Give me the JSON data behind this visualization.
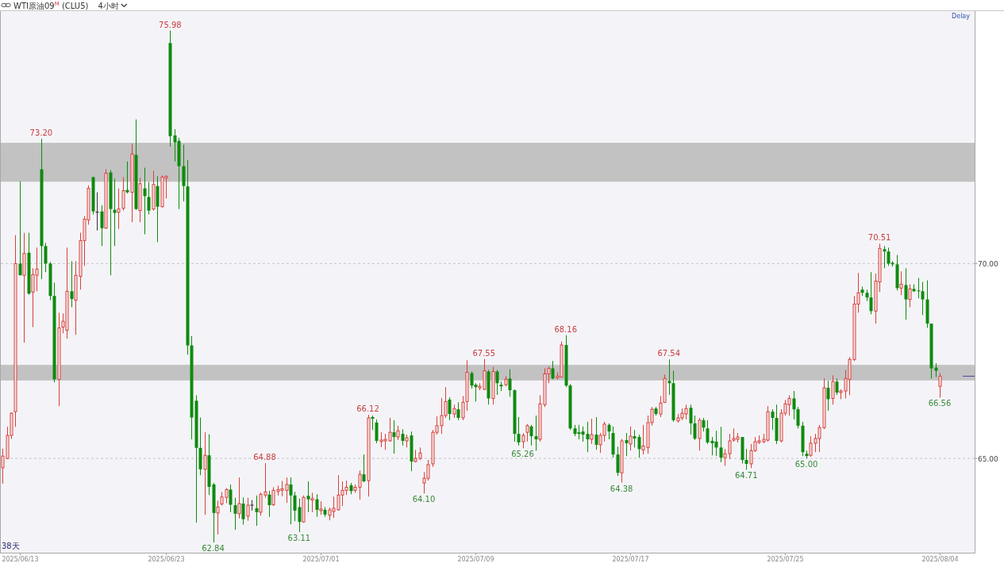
{
  "chart_data": {
    "type": "candlestick",
    "title": "WTI原油09$^{M}$ (CLU5)",
    "subtitle": "4小时",
    "categories": [
      null,
      null,
      null,
      null,
      "2025/06/13",
      null,
      null,
      null,
      null,
      null,
      null,
      null,
      null,
      null,
      null,
      null,
      null,
      null,
      null,
      null,
      null,
      null,
      null,
      null,
      null,
      null,
      null,
      null,
      null,
      null,
      null,
      null,
      null,
      null,
      null,
      null,
      null,
      null,
      "2025/06/23",
      null,
      null,
      null,
      null,
      null,
      null,
      null,
      null,
      null,
      null,
      null,
      null,
      null,
      null,
      null,
      null,
      null,
      null,
      null,
      null,
      null,
      null,
      null,
      null,
      null,
      null,
      null,
      null,
      null,
      null,
      null,
      null,
      null,
      null,
      null,
      "2025/07/01",
      null,
      null,
      null,
      null,
      null,
      null,
      null,
      null,
      null,
      null,
      null,
      null,
      null,
      null,
      null,
      null,
      null,
      null,
      null,
      null,
      null,
      null,
      null,
      null,
      null,
      null,
      null,
      null,
      null,
      null,
      null,
      null,
      null,
      null,
      null,
      "2025/07/09",
      null,
      null,
      null,
      null,
      null,
      null,
      null,
      null,
      null,
      null,
      null,
      null,
      null,
      null,
      null,
      null,
      null,
      null,
      null,
      null,
      null,
      null,
      null,
      null,
      null,
      null,
      null,
      null,
      null,
      null,
      null,
      null,
      null,
      null,
      null,
      "2025/07/17",
      null,
      null,
      null,
      null,
      null,
      null,
      null,
      null,
      null,
      null,
      null,
      null,
      null,
      null,
      null,
      null,
      null,
      null,
      null,
      null,
      null,
      null,
      null,
      null,
      null,
      null,
      null,
      null,
      null,
      null,
      null,
      null,
      null,
      null,
      null,
      "2025/07/25",
      null,
      null,
      null,
      null,
      null,
      null,
      null,
      null,
      null,
      null,
      null,
      null,
      null,
      null,
      null,
      null,
      null,
      null,
      null,
      null,
      null,
      null,
      null,
      null,
      null,
      null,
      null,
      null,
      null,
      null,
      null,
      null,
      null,
      null,
      null,
      "2025/08/04"
    ],
    "ohlc": [
      [
        64.76,
        65.25,
        64.35,
        65.06
      ],
      [
        65.0,
        65.81,
        64.98,
        65.59
      ],
      [
        65.59,
        66.18,
        65.5,
        66.16
      ],
      [
        66.2,
        70.73,
        65.81,
        70.0
      ],
      [
        70.0,
        72.11,
        69.7,
        69.7
      ],
      [
        69.7,
        70.79,
        67.97,
        70.26
      ],
      [
        70.28,
        70.79,
        69.2,
        69.23
      ],
      [
        69.27,
        69.88,
        68.37,
        69.72
      ],
      [
        69.7,
        70.41,
        69.29,
        69.86
      ],
      [
        72.42,
        73.2,
        69.6,
        70.45
      ],
      [
        70.45,
        70.53,
        69.78,
        70.0
      ],
      [
        70.0,
        70.04,
        69.06,
        69.17
      ],
      [
        69.17,
        69.51,
        66.95,
        67.03
      ],
      [
        67.03,
        68.74,
        66.34,
        68.35
      ],
      [
        68.37,
        68.72,
        68.21,
        68.52
      ],
      [
        68.29,
        70.41,
        68.07,
        69.29
      ],
      [
        69.29,
        70.06,
        68.88,
        69.09
      ],
      [
        69.06,
        70.06,
        68.17,
        69.7
      ],
      [
        69.67,
        70.79,
        69.33,
        70.59
      ],
      [
        70.59,
        71.22,
        69.94,
        71.14
      ],
      [
        71.12,
        72.01,
        71.0,
        71.93
      ],
      [
        72.22,
        72.22,
        71.26,
        71.34
      ],
      [
        71.32,
        71.83,
        70.85,
        71.32
      ],
      [
        71.34,
        71.5,
        70.45,
        70.91
      ],
      [
        70.91,
        72.42,
        70.89,
        72.32
      ],
      [
        72.34,
        72.4,
        69.7,
        71.4
      ],
      [
        71.38,
        72.18,
        70.45,
        71.3
      ],
      [
        71.32,
        71.93,
        70.89,
        71.4
      ],
      [
        71.42,
        72.22,
        71.36,
        71.87
      ],
      [
        71.89,
        72.62,
        71.8,
        71.83
      ],
      [
        71.83,
        73.07,
        71.06,
        72.81
      ],
      [
        72.79,
        73.7,
        71.38,
        71.4
      ],
      [
        71.36,
        72.2,
        71.06,
        72.05
      ],
      [
        71.93,
        72.46,
        70.75,
        71.73
      ],
      [
        71.71,
        72.09,
        71.26,
        71.36
      ],
      [
        71.4,
        72.38,
        71.36,
        72.03
      ],
      [
        71.99,
        72.24,
        70.55,
        71.46
      ],
      [
        71.46,
        72.26,
        71.44,
        72.22
      ],
      [
        72.2,
        72.26,
        71.67,
        72.24
      ],
      [
        75.66,
        75.98,
        73.0,
        73.27
      ],
      [
        73.29,
        73.45,
        72.62,
        73.11
      ],
      [
        73.15,
        73.23,
        71.4,
        72.5
      ],
      [
        72.5,
        73.05,
        71.6,
        71.99
      ],
      [
        71.98,
        72.66,
        67.66,
        67.9
      ],
      [
        67.9,
        68.14,
        65.49,
        66.05
      ],
      [
        66.48,
        66.62,
        63.35,
        65.27
      ],
      [
        65.27,
        66.05,
        64.57,
        64.72
      ],
      [
        64.72,
        65.67,
        63.55,
        65.08
      ],
      [
        65.08,
        65.62,
        64.06,
        64.27
      ],
      [
        64.33,
        64.37,
        62.84,
        63.6
      ],
      [
        63.6,
        63.92,
        63.05,
        63.75
      ],
      [
        63.83,
        64.14,
        63.79,
        64.01
      ],
      [
        64.0,
        64.24,
        63.85,
        64.2
      ],
      [
        64.2,
        64.33,
        63.62,
        63.81
      ],
      [
        63.8,
        63.99,
        63.17,
        63.58
      ],
      [
        63.58,
        64.51,
        63.46,
        63.84
      ],
      [
        63.84,
        64.0,
        63.3,
        63.44
      ],
      [
        63.52,
        63.99,
        63.4,
        63.8
      ],
      [
        63.8,
        63.93,
        63.66,
        63.8
      ],
      [
        63.72,
        64.05,
        63.27,
        63.62
      ],
      [
        63.62,
        64.12,
        63.53,
        64.08
      ],
      [
        64.06,
        64.88,
        63.99,
        64.14
      ],
      [
        64.07,
        64.17,
        63.5,
        63.8
      ],
      [
        63.81,
        64.26,
        63.78,
        64.18
      ],
      [
        64.15,
        64.3,
        64.05,
        64.2
      ],
      [
        64.18,
        64.42,
        64.03,
        64.22
      ],
      [
        64.18,
        64.51,
        63.86,
        64.33
      ],
      [
        64.33,
        64.51,
        63.31,
        64.05
      ],
      [
        64.05,
        64.14,
        63.39,
        63.66
      ],
      [
        63.75,
        63.97,
        63.11,
        63.37
      ],
      [
        63.37,
        64.05,
        63.35,
        64.0
      ],
      [
        64.04,
        64.41,
        63.62,
        63.95
      ],
      [
        63.93,
        64.12,
        63.62,
        63.97
      ],
      [
        63.95,
        64.08,
        63.5,
        63.68
      ],
      [
        63.66,
        63.9,
        63.55,
        63.7
      ],
      [
        63.68,
        63.75,
        63.5,
        63.56
      ],
      [
        63.54,
        63.74,
        63.41,
        63.68
      ],
      [
        63.64,
        64.02,
        63.47,
        63.72
      ],
      [
        63.68,
        64.57,
        63.66,
        64.06
      ],
      [
        64.06,
        64.41,
        63.78,
        64.18
      ],
      [
        64.18,
        64.43,
        64.06,
        64.26
      ],
      [
        64.31,
        64.37,
        64.08,
        64.16
      ],
      [
        64.18,
        64.33,
        64.12,
        64.26
      ],
      [
        64.26,
        64.69,
        63.94,
        64.59
      ],
      [
        64.59,
        65.1,
        64.39,
        64.41
      ],
      [
        64.43,
        66.12,
        64.02,
        66.04
      ],
      [
        66.06,
        66.1,
        65.73,
        66.02
      ],
      [
        65.92,
        66.0,
        65.39,
        65.45
      ],
      [
        65.43,
        65.67,
        65.29,
        65.47
      ],
      [
        65.45,
        65.63,
        65.22,
        65.49
      ],
      [
        65.45,
        66.04,
        65.43,
        65.67
      ],
      [
        65.67,
        65.98,
        65.12,
        65.55
      ],
      [
        65.55,
        65.84,
        65.47,
        65.71
      ],
      [
        65.63,
        65.75,
        65.33,
        65.45
      ],
      [
        65.45,
        65.61,
        65.28,
        65.53
      ],
      [
        65.59,
        65.69,
        64.67,
        64.92
      ],
      [
        64.92,
        65.22,
        64.9,
        65.0
      ],
      [
        65.0,
        65.28,
        64.96,
        65.14
      ],
      [
        64.37,
        64.65,
        64.1,
        64.49
      ],
      [
        64.49,
        64.96,
        64.43,
        64.84
      ],
      [
        64.86,
        65.73,
        64.78,
        65.67
      ],
      [
        65.67,
        66.08,
        65.61,
        65.84
      ],
      [
        65.84,
        66.55,
        65.63,
        66.1
      ],
      [
        66.1,
        66.83,
        66.04,
        66.46
      ],
      [
        66.51,
        66.57,
        65.98,
        66.14
      ],
      [
        66.14,
        66.38,
        66.04,
        66.28
      ],
      [
        66.26,
        66.44,
        65.98,
        66.04
      ],
      [
        66.04,
        66.6,
        65.98,
        66.44
      ],
      [
        66.46,
        67.52,
        66.22,
        67.21
      ],
      [
        67.19,
        67.23,
        66.79,
        66.87
      ],
      [
        66.89,
        66.93,
        66.46,
        66.83
      ],
      [
        66.81,
        66.93,
        66.75,
        66.85
      ],
      [
        66.77,
        67.55,
        66.75,
        67.25
      ],
      [
        67.23,
        67.27,
        66.38,
        66.54
      ],
      [
        66.54,
        67.35,
        66.38,
        67.23
      ],
      [
        67.23,
        67.27,
        66.63,
        66.93
      ],
      [
        66.89,
        66.97,
        66.73,
        66.85
      ],
      [
        66.89,
        67.11,
        66.85,
        67.03
      ],
      [
        67.05,
        67.29,
        66.58,
        66.75
      ],
      [
        66.75,
        66.77,
        65.43,
        65.63
      ],
      [
        65.63,
        66.06,
        65.33,
        65.41
      ],
      [
        65.43,
        65.65,
        65.26,
        65.59
      ],
      [
        65.67,
        65.88,
        65.43,
        65.84
      ],
      [
        65.82,
        65.86,
        65.33,
        65.57
      ],
      [
        65.57,
        66.1,
        65.2,
        65.49
      ],
      [
        65.49,
        66.62,
        65.43,
        66.4
      ],
      [
        66.38,
        67.31,
        66.32,
        67.17
      ],
      [
        67.17,
        67.35,
        66.93,
        67.31
      ],
      [
        67.31,
        67.5,
        67.03,
        67.05
      ],
      [
        67.07,
        67.21,
        67.03,
        67.11
      ],
      [
        67.09,
        68.0,
        67.07,
        67.91
      ],
      [
        67.91,
        68.16,
        66.83,
        66.87
      ],
      [
        66.87,
        66.91,
        65.73,
        65.77
      ],
      [
        65.77,
        65.86,
        65.57,
        65.63
      ],
      [
        65.67,
        65.86,
        65.49,
        65.63
      ],
      [
        65.69,
        65.82,
        65.43,
        65.61
      ],
      [
        65.63,
        65.94,
        65.16,
        65.49
      ],
      [
        65.49,
        66.02,
        65.37,
        65.61
      ],
      [
        65.61,
        66.06,
        65.22,
        65.35
      ],
      [
        65.35,
        65.65,
        65.14,
        65.59
      ],
      [
        65.59,
        65.94,
        65.43,
        65.88
      ],
      [
        65.86,
        65.9,
        65.49,
        65.69
      ],
      [
        65.65,
        65.82,
        65.02,
        65.1
      ],
      [
        65.1,
        65.3,
        64.55,
        64.63
      ],
      [
        64.63,
        65.5,
        64.38,
        65.45
      ],
      [
        65.47,
        65.65,
        65.06,
        65.39
      ],
      [
        65.37,
        65.82,
        65.2,
        65.57
      ],
      [
        65.57,
        65.73,
        65.28,
        65.51
      ],
      [
        65.55,
        65.61,
        65.02,
        65.24
      ],
      [
        65.22,
        65.86,
        65.1,
        65.32
      ],
      [
        65.28,
        66.1,
        65.12,
        65.92
      ],
      [
        65.92,
        66.32,
        65.84,
        66.26
      ],
      [
        66.28,
        66.32,
        66.1,
        66.14
      ],
      [
        66.14,
        66.6,
        66.06,
        66.42
      ],
      [
        66.44,
        67.15,
        66.42,
        67.05
      ],
      [
        66.99,
        67.54,
        66.63,
        66.93
      ],
      [
        66.93,
        67.25,
        65.94,
        65.98
      ],
      [
        65.96,
        66.14,
        65.92,
        66.04
      ],
      [
        66.04,
        66.28,
        65.98,
        66.16
      ],
      [
        66.14,
        66.38,
        66.0,
        66.28
      ],
      [
        66.3,
        66.38,
        65.61,
        65.9
      ],
      [
        65.9,
        66.1,
        65.47,
        65.51
      ],
      [
        65.51,
        66.04,
        65.2,
        65.98
      ],
      [
        65.98,
        66.04,
        65.69,
        65.79
      ],
      [
        65.77,
        65.98,
        65.37,
        65.41
      ],
      [
        65.45,
        65.55,
        65.08,
        65.39
      ],
      [
        65.43,
        65.71,
        65.06,
        65.28
      ],
      [
        65.28,
        65.81,
        64.9,
        65.02
      ],
      [
        65.02,
        65.24,
        64.81,
        65.12
      ],
      [
        65.12,
        65.63,
        64.98,
        65.45
      ],
      [
        65.47,
        65.77,
        65.43,
        65.51
      ],
      [
        65.49,
        65.65,
        65.41,
        65.55
      ],
      [
        65.55,
        65.55,
        64.87,
        64.96
      ],
      [
        64.96,
        65.24,
        64.71,
        64.86
      ],
      [
        64.86,
        65.37,
        64.75,
        65.2
      ],
      [
        65.2,
        65.55,
        65.16,
        65.43
      ],
      [
        65.41,
        65.59,
        65.37,
        65.45
      ],
      [
        65.43,
        65.63,
        65.39,
        65.49
      ],
      [
        65.47,
        66.34,
        65.43,
        66.2
      ],
      [
        66.2,
        66.26,
        65.73,
        66.04
      ],
      [
        66.04,
        66.38,
        65.37,
        65.45
      ],
      [
        65.45,
        66.26,
        65.41,
        66.16
      ],
      [
        66.16,
        66.5,
        66.1,
        66.4
      ],
      [
        66.38,
        66.62,
        66.1,
        66.54
      ],
      [
        66.54,
        66.73,
        66.0,
        66.26
      ],
      [
        66.26,
        66.32,
        65.77,
        65.84
      ],
      [
        65.84,
        65.94,
        65.06,
        65.16
      ],
      [
        65.12,
        65.2,
        65.0,
        65.06
      ],
      [
        65.08,
        65.57,
        65.04,
        65.39
      ],
      [
        65.39,
        65.63,
        65.16,
        65.51
      ],
      [
        65.51,
        65.86,
        65.16,
        65.79
      ],
      [
        65.79,
        67.05,
        65.75,
        66.81
      ],
      [
        66.81,
        66.99,
        66.22,
        66.52
      ],
      [
        66.54,
        67.13,
        66.38,
        66.97
      ],
      [
        66.97,
        67.05,
        66.63,
        66.69
      ],
      [
        66.69,
        66.77,
        66.52,
        66.73
      ],
      [
        66.73,
        67.27,
        66.54,
        67.05
      ],
      [
        67.03,
        67.6,
        66.62,
        67.54
      ],
      [
        67.54,
        69.17,
        67.5,
        68.96
      ],
      [
        68.96,
        69.76,
        68.74,
        69.25
      ],
      [
        69.33,
        69.41,
        69.17,
        69.25
      ],
      [
        69.25,
        69.33,
        69.04,
        69.13
      ],
      [
        69.13,
        69.78,
        68.7,
        68.78
      ],
      [
        68.78,
        69.74,
        68.46,
        69.55
      ],
      [
        69.53,
        70.51,
        69.27,
        70.39
      ],
      [
        70.37,
        70.45,
        69.88,
        70.31
      ],
      [
        70.31,
        70.41,
        69.94,
        70.0
      ],
      [
        70.02,
        70.06,
        69.92,
        69.98
      ],
      [
        69.98,
        70.22,
        69.31,
        69.37
      ],
      [
        69.37,
        69.8,
        69.19,
        69.47
      ],
      [
        69.45,
        69.88,
        68.56,
        69.08
      ],
      [
        69.08,
        69.47,
        68.88,
        69.35
      ],
      [
        69.35,
        69.47,
        69.27,
        69.29
      ],
      [
        69.31,
        69.63,
        69.11,
        69.29
      ],
      [
        69.29,
        69.53,
        68.68,
        69.08
      ],
      [
        69.08,
        69.57,
        68.35,
        68.46
      ],
      [
        68.46,
        68.46,
        67.05,
        67.31
      ],
      [
        67.33,
        67.44,
        67.09,
        67.25
      ],
      [
        66.85,
        67.19,
        66.56,
        67.11
      ]
    ],
    "colors": [
      "#d8403c",
      "#d8403c",
      "#d8403c",
      "#d8403c",
      "#0e8a0e",
      "#d8403c",
      "#0e8a0e",
      "#d8403c",
      "#d8403c",
      "#0e8a0e",
      "#0e8a0e",
      "#0e8a0e",
      "#0e8a0e",
      "#d8403c",
      "#d8403c",
      "#d8403c",
      "#0e8a0e",
      "#d8403c",
      "#d8403c",
      "#d8403c",
      "#d8403c",
      "#0e8a0e",
      "#333333",
      "#0e8a0e",
      "#d8403c",
      "#0e8a0e",
      "#0e8a0e",
      "#d8403c",
      "#d8403c",
      "#0e8a0e",
      "#d8403c",
      "#0e8a0e",
      "#d8403c",
      "#0e8a0e",
      "#0e8a0e",
      "#d8403c",
      "#0e8a0e",
      "#d8403c",
      "#d8403c",
      "#0e8a0e",
      "#0e8a0e",
      "#0e8a0e",
      "#0e8a0e",
      "#0e8a0e",
      "#0e8a0e",
      "#0e8a0e",
      "#0e8a0e",
      "#d8403c",
      "#0e8a0e",
      "#0e8a0e",
      "#d8403c",
      "#d8403c",
      "#d8403c",
      "#0e8a0e",
      "#0e8a0e",
      "#d8403c",
      "#0e8a0e",
      "#d8403c",
      "#333333",
      "#0e8a0e",
      "#d8403c",
      "#d8403c",
      "#0e8a0e",
      "#d8403c",
      "#d8403c",
      "#d8403c",
      "#d8403c",
      "#0e8a0e",
      "#0e8a0e",
      "#0e8a0e",
      "#d8403c",
      "#0e8a0e",
      "#d8403c",
      "#0e8a0e",
      "#d8403c",
      "#0e8a0e",
      "#d8403c",
      "#d8403c",
      "#d8403c",
      "#d8403c",
      "#d8403c",
      "#0e8a0e",
      "#d8403c",
      "#d8403c",
      "#0e8a0e",
      "#d8403c",
      "#0e8a0e",
      "#0e8a0e",
      "#d8403c",
      "#d8403c",
      "#d8403c",
      "#0e8a0e",
      "#d8403c",
      "#0e8a0e",
      "#d8403c",
      "#0e8a0e",
      "#d8403c",
      "#d8403c",
      "#d8403c",
      "#d8403c",
      "#d8403c",
      "#d8403c",
      "#d8403c",
      "#d8403c",
      "#0e8a0e",
      "#d8403c",
      "#0e8a0e",
      "#d8403c",
      "#d8403c",
      "#0e8a0e",
      "#0e8a0e",
      "#d8403c",
      "#d8403c",
      "#0e8a0e",
      "#d8403c",
      "#0e8a0e",
      "#0e8a0e",
      "#d8403c",
      "#0e8a0e",
      "#0e8a0e",
      "#0e8a0e",
      "#d8403c",
      "#d8403c",
      "#0e8a0e",
      "#0e8a0e",
      "#d8403c",
      "#d8403c",
      "#d8403c",
      "#0e8a0e",
      "#d8403c",
      "#d8403c",
      "#0e8a0e",
      "#0e8a0e",
      "#0e8a0e",
      "#0e8a0e",
      "#0e8a0e",
      "#0e8a0e",
      "#d8403c",
      "#0e8a0e",
      "#d8403c",
      "#d8403c",
      "#0e8a0e",
      "#0e8a0e",
      "#0e8a0e",
      "#d8403c",
      "#0e8a0e",
      "#d8403c",
      "#0e8a0e",
      "#0e8a0e",
      "#d8403c",
      "#d8403c",
      "#d8403c",
      "#0e8a0e",
      "#d8403c",
      "#d8403c",
      "#0e8a0e",
      "#0e8a0e",
      "#d8403c",
      "#d8403c",
      "#d8403c",
      "#0e8a0e",
      "#0e8a0e",
      "#d8403c",
      "#0e8a0e",
      "#0e8a0e",
      "#0e8a0e",
      "#0e8a0e",
      "#0e8a0e",
      "#d8403c",
      "#d8403c",
      "#d8403c",
      "#d8403c",
      "#0e8a0e",
      "#0e8a0e",
      "#d8403c",
      "#d8403c",
      "#d8403c",
      "#d8403c",
      "#d8403c",
      "#0e8a0e",
      "#0e8a0e",
      "#d8403c",
      "#d8403c",
      "#d8403c",
      "#0e8a0e",
      "#0e8a0e",
      "#0e8a0e",
      "#0e8a0e",
      "#d8403c",
      "#d8403c",
      "#d8403c",
      "#d8403c",
      "#0e8a0e",
      "#d8403c",
      "#0e8a0e",
      "#d8403c",
      "#d8403c",
      "#d8403c",
      "#d8403c",
      "#d8403c",
      "#0e8a0e",
      "#0e8a0e",
      "#0e8a0e",
      "#d8403c",
      "#d8403c",
      "#0e8a0e",
      "#0e8a0e",
      "#0e8a0e",
      "#0e8a0e",
      "#d8403c",
      "#0e8a0e",
      "#d8403c",
      "#0e8a0e",
      "#0e8a0e",
      "#0e8a0e",
      "#0e8a0e",
      "#0e8a0e",
      "#0e8a0e",
      "#d8403c"
    ],
    "ylim": [
      62.58,
      76.48
    ],
    "yticks": [
      {
        "value": 65,
        "label": "65.00"
      },
      {
        "value": 70,
        "label": "70.00"
      }
    ],
    "grid": "y",
    "bands": [
      {
        "axis": "y",
        "from": 72.1,
        "to": 73.1,
        "color": "#c2c2c2"
      },
      {
        "axis": "y",
        "from": 67.0,
        "to": 67.4,
        "color": "#c2c2c2"
      }
    ],
    "annotations": [
      "Delay",
      "38天",
      {
        "text": "73.20",
        "y": 73.2
      },
      {
        "text": "75.98",
        "y": 75.98
      },
      {
        "text": "62.84",
        "y": 62.84
      },
      {
        "text": "64.88",
        "y": 64.88
      },
      {
        "text": "63.11",
        "y": 63.11
      },
      {
        "text": "66.12",
        "y": 66.12
      },
      {
        "text": "64.10",
        "y": 64.1
      },
      {
        "text": "67.55",
        "y": 67.55
      },
      {
        "text": "65.26",
        "y": 65.26
      },
      {
        "text": "68.16",
        "y": 68.16
      },
      {
        "text": "64.38",
        "y": 64.38
      },
      {
        "text": "67.54",
        "y": 67.54
      },
      {
        "text": "64.71",
        "y": 64.71
      },
      {
        "text": "65.00",
        "y": 65
      },
      {
        "text": "70.51",
        "y": 70.51
      },
      {
        "text": "66.56",
        "y": 66.56
      }
    ]
  }
}
